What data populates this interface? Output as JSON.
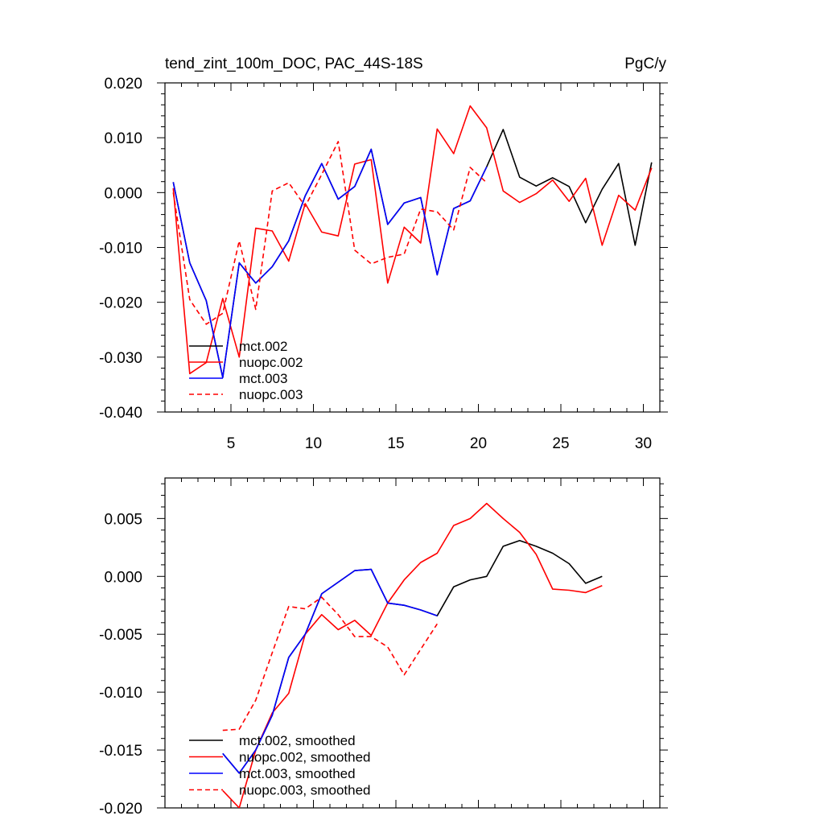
{
  "chart_data": [
    {
      "type": "line",
      "title": "tend_zint_100m_DOC, PAC_44S-18S",
      "units": "PgC/y",
      "xlim": [
        1,
        31
      ],
      "ylim": [
        -0.04,
        0.02
      ],
      "xticks": [
        5,
        10,
        15,
        20,
        25,
        30
      ],
      "xtick_labels": [
        "5",
        "10",
        "15",
        "20",
        "25",
        "30"
      ],
      "yticks": [
        -0.04,
        -0.03,
        -0.02,
        -0.01,
        0.0,
        0.01,
        0.02
      ],
      "ytick_labels": [
        "-0.040",
        "-0.030",
        "-0.020",
        "-0.010",
        "0.000",
        "0.010",
        "0.020"
      ],
      "legend_position": "bottom-left",
      "series": [
        {
          "name": "mct.002",
          "color": "#000000",
          "dash": "solid",
          "x": [
            1.5,
            2.5,
            3.5,
            4.5,
            5.5,
            6.5,
            7.5,
            8.5,
            9.5,
            10.5,
            11.5,
            12.5,
            13.5,
            14.5,
            15.5,
            16.5,
            17.5,
            18.5,
            19.5,
            20.5,
            21.5,
            22.5,
            23.5,
            24.5,
            25.5,
            26.5,
            27.5,
            28.5,
            29.5,
            30.5
          ],
          "y": [
            0.0019,
            -0.0128,
            -0.0197,
            -0.0337,
            -0.0128,
            -0.0165,
            -0.0135,
            -0.0088,
            -0.0006,
            0.0053,
            -0.0012,
            0.0011,
            0.0079,
            -0.0058,
            -0.0019,
            -0.0009,
            -0.015,
            -0.0029,
            -0.0015,
            0.0047,
            0.0115,
            0.0028,
            0.0012,
            0.0027,
            0.0011,
            -0.0055,
            0.0006,
            0.0053,
            -0.0096,
            0.0055
          ]
        },
        {
          "name": "nuopc.002",
          "color": "#ff0000",
          "dash": "solid",
          "x": [
            1.5,
            2.5,
            3.5,
            4.5,
            5.5,
            6.5,
            7.5,
            8.5,
            9.5,
            10.5,
            11.5,
            12.5,
            13.5,
            14.5,
            15.5,
            16.5,
            17.5,
            18.5,
            19.5,
            20.5,
            21.5,
            22.5,
            23.5,
            24.5,
            25.5,
            26.5,
            27.5,
            28.5,
            29.5,
            30.5
          ],
          "y": [
            0.0008,
            -0.033,
            -0.031,
            -0.0193,
            -0.03,
            -0.0065,
            -0.007,
            -0.0125,
            -0.002,
            -0.0072,
            -0.0079,
            0.0052,
            0.006,
            -0.0165,
            -0.0063,
            -0.0092,
            0.0116,
            0.0071,
            0.0158,
            0.0118,
            0.0003,
            -0.0018,
            -0.0002,
            0.0023,
            -0.0016,
            0.0026,
            -0.0096,
            -0.0005,
            -0.0032,
            0.0045
          ]
        },
        {
          "name": "mct.003",
          "color": "#0000ff",
          "dash": "solid",
          "x": [
            1.5,
            2.5,
            3.5,
            4.5,
            5.5,
            6.5,
            7.5,
            8.5,
            9.5,
            10.5,
            11.5,
            12.5,
            13.5,
            14.5,
            15.5,
            16.5,
            17.5,
            18.5,
            19.5,
            20.5
          ],
          "y": [
            0.0019,
            -0.0128,
            -0.0197,
            -0.0337,
            -0.0128,
            -0.0165,
            -0.0135,
            -0.0088,
            -0.0006,
            0.0053,
            -0.0012,
            0.0011,
            0.0079,
            -0.0058,
            -0.0019,
            -0.0009,
            -0.015,
            -0.0029,
            -0.0015,
            0.0047
          ]
        },
        {
          "name": "nuopc.003",
          "color": "#ff0000",
          "dash": "dashed",
          "x": [
            1.5,
            2.5,
            3.5,
            4.5,
            5.5,
            6.5,
            7.5,
            8.5,
            9.5,
            10.5,
            11.5,
            12.5,
            13.5,
            14.5,
            15.5,
            16.5,
            17.5,
            18.5,
            19.5,
            20.5
          ],
          "y": [
            0.0,
            -0.0195,
            -0.024,
            -0.022,
            -0.0088,
            -0.0213,
            0.0003,
            0.0018,
            -0.0025,
            0.0033,
            0.0093,
            -0.0105,
            -0.013,
            -0.0118,
            -0.0112,
            -0.003,
            -0.0035,
            -0.0068,
            0.0046,
            0.0018
          ]
        }
      ]
    },
    {
      "type": "line",
      "xlim": [
        1,
        31
      ],
      "ylim": [
        -0.02,
        0.0085
      ],
      "xticks": [
        5,
        10,
        15,
        20,
        25,
        30
      ],
      "yticks": [
        -0.02,
        -0.015,
        -0.01,
        -0.005,
        0.0,
        0.005
      ],
      "ytick_labels": [
        "-0.020",
        "-0.015",
        "-0.010",
        "-0.005",
        "0.000",
        "0.005"
      ],
      "legend_position": "bottom-left",
      "series": [
        {
          "name": "mct.002, smoothed",
          "color": "#000000",
          "dash": "solid",
          "x": [
            4.5,
            5.5,
            6.5,
            7.5,
            8.5,
            9.5,
            10.5,
            11.5,
            12.5,
            13.5,
            14.5,
            15.5,
            16.5,
            17.5,
            18.5,
            19.5,
            20.5,
            21.5,
            22.5,
            23.5,
            24.5,
            25.5,
            26.5,
            27.5
          ],
          "y": [
            -0.0153,
            -0.017,
            -0.015,
            -0.012,
            -0.007,
            -0.005,
            -0.0015,
            -0.0005,
            0.0005,
            0.0006,
            -0.0023,
            -0.0025,
            -0.0029,
            -0.0034,
            -0.0009,
            -0.0003,
            0.0,
            0.0026,
            0.0031,
            0.0026,
            0.002,
            0.0011,
            -0.0006,
            0.0
          ]
        },
        {
          "name": "nuopc.002, smoothed",
          "color": "#ff0000",
          "dash": "solid",
          "x": [
            4.5,
            5.5,
            6.5,
            7.5,
            8.5,
            9.5,
            10.5,
            11.5,
            12.5,
            13.5,
            14.5,
            15.5,
            16.5,
            17.5,
            18.5,
            19.5,
            20.5,
            21.5,
            22.5,
            23.5,
            24.5,
            25.5,
            26.5,
            27.5
          ],
          "y": [
            -0.0185,
            -0.02,
            -0.015,
            -0.0118,
            -0.0101,
            -0.005,
            -0.0033,
            -0.0046,
            -0.0038,
            -0.0051,
            -0.0023,
            -0.0003,
            0.0012,
            0.002,
            0.0044,
            0.005,
            0.0063,
            0.005,
            0.0038,
            0.0019,
            -0.0011,
            -0.0012,
            -0.0014,
            -0.0008
          ]
        },
        {
          "name": "mct.003, smoothed",
          "color": "#0000ff",
          "dash": "solid",
          "x": [
            4.5,
            5.5,
            6.5,
            7.5,
            8.5,
            9.5,
            10.5,
            11.5,
            12.5,
            13.5,
            14.5,
            15.5,
            16.5,
            17.5
          ],
          "y": [
            -0.0153,
            -0.017,
            -0.015,
            -0.012,
            -0.007,
            -0.005,
            -0.0015,
            -0.0005,
            0.0005,
            0.0006,
            -0.0023,
            -0.0025,
            -0.0029,
            -0.0034
          ]
        },
        {
          "name": "nuopc.003, smoothed",
          "color": "#ff0000",
          "dash": "dashed",
          "x": [
            4.5,
            5.5,
            6.5,
            7.5,
            8.5,
            9.5,
            10.5,
            11.5,
            12.5,
            13.5,
            14.5,
            15.5,
            16.5,
            17.5
          ],
          "y": [
            -0.0133,
            -0.0132,
            -0.0107,
            -0.0066,
            -0.0026,
            -0.0028,
            -0.0018,
            -0.0033,
            -0.0052,
            -0.0052,
            -0.0061,
            -0.0085,
            -0.0063,
            -0.0041
          ]
        }
      ]
    }
  ]
}
